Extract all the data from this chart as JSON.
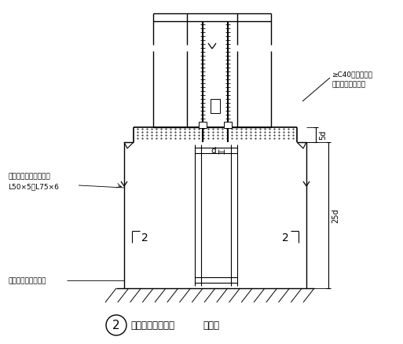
{
  "bg_color": "#ffffff",
  "line_color": "#000000",
  "title_circle_text": "2",
  "title_text": "柱脚镑栓固定支架",
  "title_suffix": "（二）",
  "label_top_right1": "≥C40无收缩碎石",
  "label_top_right2": "混凝土或细石砂浆",
  "label_left1": "镑栓固定角钓，通常用",
  "label_left2": "L50×5～L75×6",
  "label_bottom_left": "镑栓固定架设置标高",
  "label_d": "d",
  "label_5d": "5d",
  "label_25d": "25d",
  "label_2_left": "2",
  "label_2_right": "2"
}
